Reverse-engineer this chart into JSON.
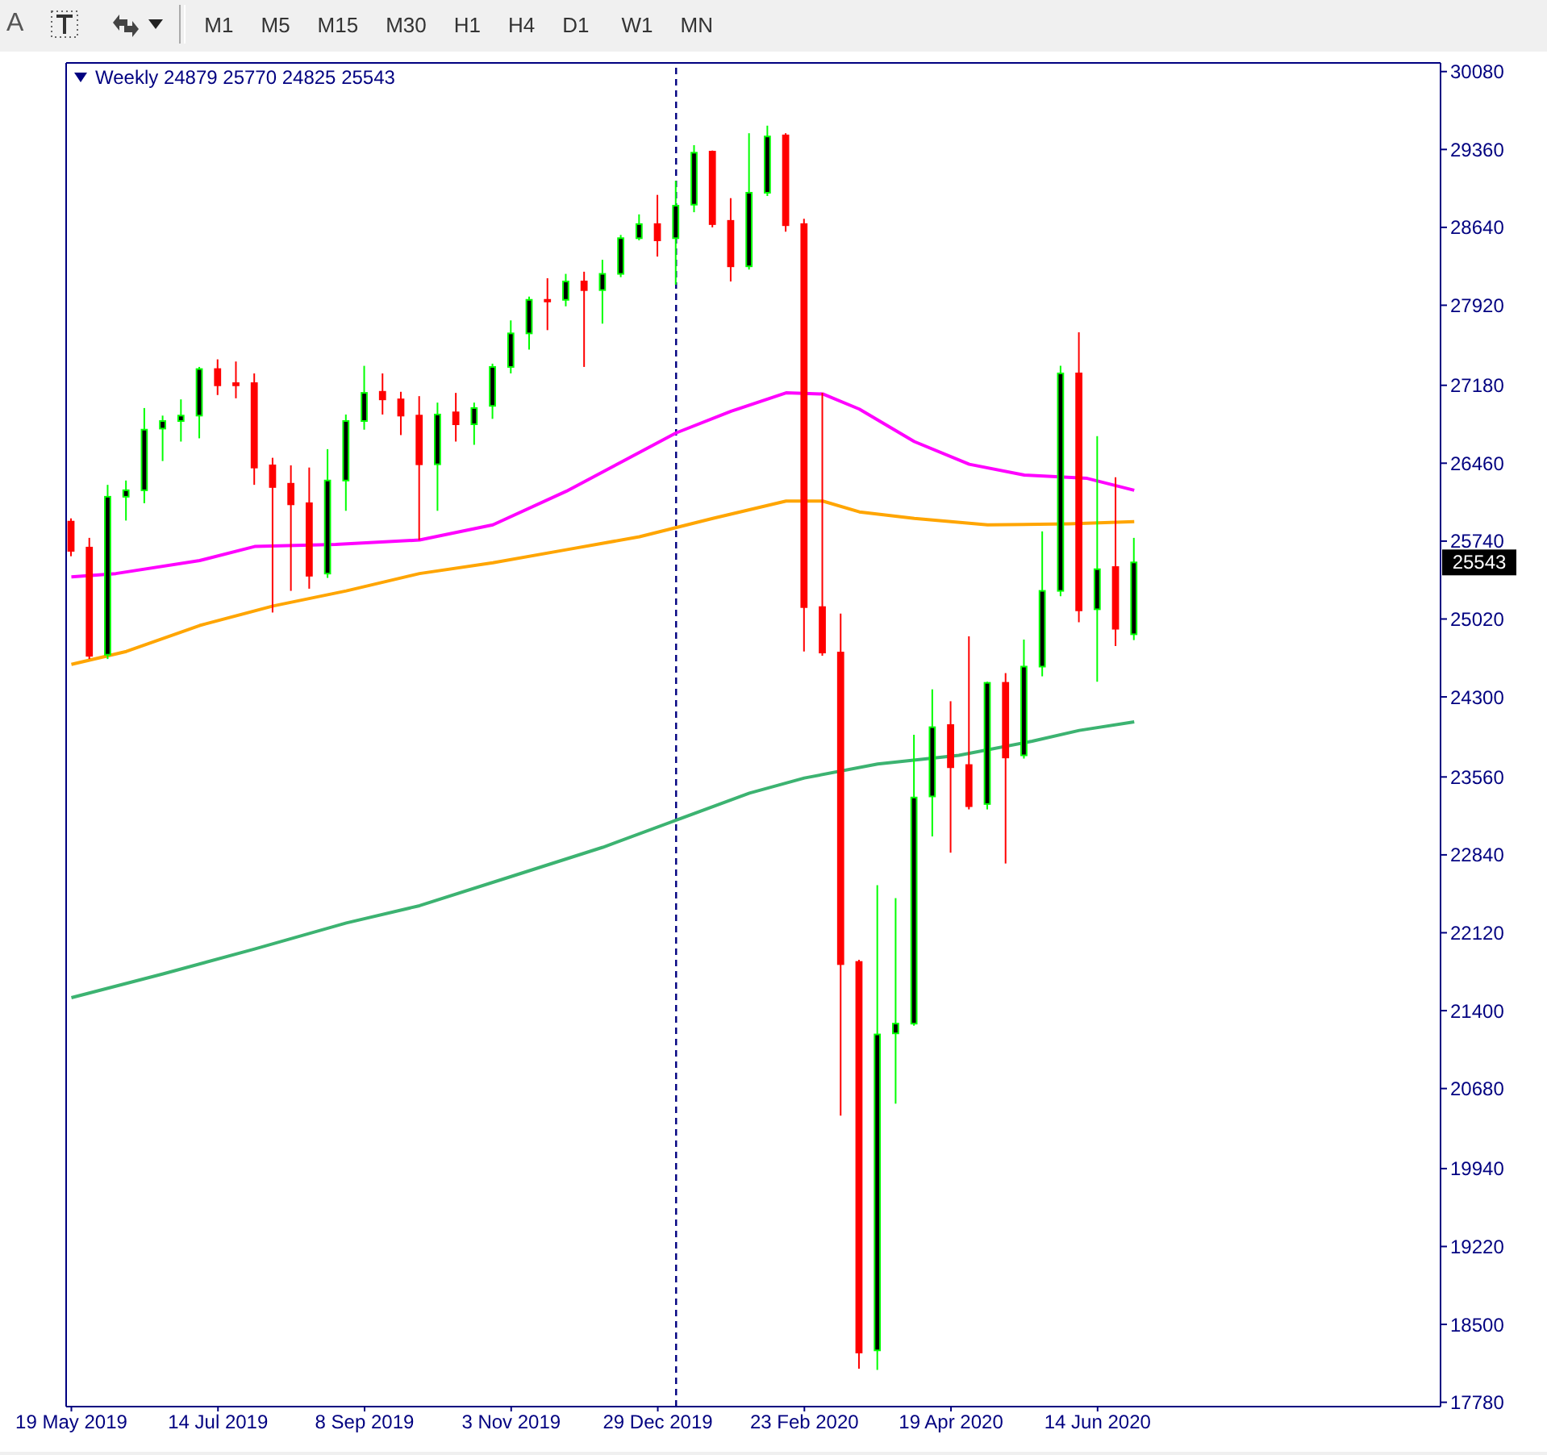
{
  "chart_data": {
    "type": "candlestick",
    "title": "Weekly  24879 25770 24825 25543",
    "annotations": [
      "A",
      "M1",
      "M5",
      "M15",
      "M30",
      "H1",
      "H4",
      "D1",
      "W1",
      "MN",
      "25543"
    ],
    "x": [
      "2019-05-19",
      "2019-05-26",
      "2019-06-02",
      "2019-06-09",
      "2019-06-16",
      "2019-06-23",
      "2019-06-30",
      "2019-07-07",
      "2019-07-14",
      "2019-07-21",
      "2019-07-28",
      "2019-08-04",
      "2019-08-11",
      "2019-08-18",
      "2019-08-25",
      "2019-09-01",
      "2019-09-08",
      "2019-09-15",
      "2019-09-22",
      "2019-09-29",
      "2019-10-06",
      "2019-10-13",
      "2019-10-20",
      "2019-10-27",
      "2019-11-03",
      "2019-11-10",
      "2019-11-17",
      "2019-11-24",
      "2019-12-01",
      "2019-12-08",
      "2019-12-15",
      "2019-12-22",
      "2019-12-29",
      "2020-01-05",
      "2020-01-12",
      "2020-01-19",
      "2020-01-26",
      "2020-02-02",
      "2020-02-09",
      "2020-02-16",
      "2020-02-23",
      "2020-03-01",
      "2020-03-08",
      "2020-03-15",
      "2020-03-22",
      "2020-03-29",
      "2020-04-05",
      "2020-04-12",
      "2020-04-19",
      "2020-04-26",
      "2020-05-03",
      "2020-05-10",
      "2020-05-17",
      "2020-05-24",
      "2020-05-31",
      "2020-06-07",
      "2020-06-14",
      "2020-06-21",
      "2020-06-28"
    ],
    "ohlc": [
      [
        25920,
        25950,
        25600,
        25650
      ],
      [
        25680,
        25770,
        24650,
        24680
      ],
      [
        24690,
        26260,
        24650,
        26150
      ],
      [
        26150,
        26300,
        25930,
        26210
      ],
      [
        26210,
        26970,
        26090,
        26770
      ],
      [
        26780,
        26900,
        26480,
        26850
      ],
      [
        26850,
        27050,
        26660,
        26900
      ],
      [
        26900,
        27350,
        26690,
        27330
      ],
      [
        27330,
        27420,
        27090,
        27180
      ],
      [
        27200,
        27400,
        27060,
        27180
      ],
      [
        27200,
        27290,
        26260,
        26420
      ],
      [
        26440,
        26510,
        25080,
        26240
      ],
      [
        26270,
        26440,
        25280,
        26080
      ],
      [
        26090,
        26420,
        25300,
        25420
      ],
      [
        25440,
        26590,
        25400,
        26300
      ],
      [
        26300,
        26910,
        26020,
        26850
      ],
      [
        26850,
        27360,
        26770,
        27110
      ],
      [
        27120,
        27290,
        26910,
        27050
      ],
      [
        27050,
        27120,
        26720,
        26900
      ],
      [
        26900,
        27080,
        25750,
        26450
      ],
      [
        26450,
        27020,
        26020,
        26910
      ],
      [
        26930,
        27110,
        26660,
        26820
      ],
      [
        26820,
        27020,
        26630,
        26970
      ],
      [
        26990,
        27380,
        26870,
        27350
      ],
      [
        27350,
        27780,
        27290,
        27660
      ],
      [
        27660,
        28000,
        27510,
        27970
      ],
      [
        27970,
        28170,
        27690,
        27960
      ],
      [
        27970,
        28210,
        27910,
        28140
      ],
      [
        28140,
        28230,
        27350,
        28060
      ],
      [
        28060,
        28340,
        27750,
        28210
      ],
      [
        28210,
        28570,
        28180,
        28540
      ],
      [
        28540,
        28760,
        28520,
        28670
      ],
      [
        28670,
        28940,
        28370,
        28520
      ],
      [
        28540,
        29070,
        28110,
        28840
      ],
      [
        28850,
        29400,
        28780,
        29330
      ],
      [
        29340,
        29350,
        28640,
        28670
      ],
      [
        28700,
        28910,
        28140,
        28280
      ],
      [
        28280,
        29510,
        28250,
        28960
      ],
      [
        28960,
        29580,
        28930,
        29480
      ],
      [
        29490,
        29510,
        28600,
        28660
      ],
      [
        28670,
        28720,
        24720,
        25130
      ],
      [
        25130,
        27110,
        24680,
        24710
      ],
      [
        24710,
        25070,
        20430,
        21830
      ],
      [
        21850,
        21870,
        18090,
        18240
      ],
      [
        18260,
        22560,
        18080,
        21180
      ],
      [
        21190,
        22440,
        20540,
        21280
      ],
      [
        21280,
        23950,
        21260,
        23370
      ],
      [
        23380,
        24370,
        23010,
        24020
      ],
      [
        24040,
        24260,
        22860,
        23650
      ],
      [
        23670,
        24860,
        23260,
        23290
      ],
      [
        23310,
        24440,
        23260,
        24430
      ],
      [
        24430,
        24520,
        22760,
        23740
      ],
      [
        23760,
        24830,
        23730,
        24580
      ],
      [
        24580,
        25830,
        24490,
        25280
      ],
      [
        25280,
        27360,
        25230,
        27290
      ],
      [
        27290,
        27670,
        24990,
        25100
      ],
      [
        25110,
        26710,
        24440,
        25480
      ],
      [
        25500,
        26330,
        24770,
        24930
      ],
      [
        24879,
        25770,
        24825,
        25543
      ]
    ],
    "colors": [
      "#ff0000",
      "#ff0000",
      "#00ff00",
      "#00ff00",
      "#00ff00",
      "#00ff00",
      "#00ff00",
      "#00ff00",
      "#ff0000",
      "#ff0000",
      "#ff0000",
      "#ff0000",
      "#ff0000",
      "#ff0000",
      "#00ff00",
      "#00ff00",
      "#00ff00",
      "#ff0000",
      "#ff0000",
      "#ff0000",
      "#00ff00",
      "#ff0000",
      "#00ff00",
      "#00ff00",
      "#00ff00",
      "#00ff00",
      "#ff0000",
      "#00ff00",
      "#ff0000",
      "#00ff00",
      "#00ff00",
      "#00ff00",
      "#ff0000",
      "#00ff00",
      "#00ff00",
      "#ff0000",
      "#ff0000",
      "#00ff00",
      "#00ff00",
      "#ff0000",
      "#ff0000",
      "#ff0000",
      "#ff0000",
      "#ff0000",
      "#00ff00",
      "#00ff00",
      "#00ff00",
      "#00ff00",
      "#ff0000",
      "#ff0000",
      "#00ff00",
      "#ff0000",
      "#00ff00",
      "#00ff00",
      "#00ff00",
      "#ff0000",
      "#00ff00",
      "#ff0000",
      "#00ff00"
    ],
    "series": [
      {
        "type": "line",
        "color": "#ff00ff",
        "x": [
          "2019-05-19",
          "2019-06-05",
          "2019-07-07",
          "2019-07-28",
          "2019-08-28",
          "2019-09-29",
          "2019-10-27",
          "2019-11-24",
          "2019-12-15",
          "2020-01-05",
          "2020-01-26",
          "2020-02-16",
          "2020-03-01",
          "2020-03-15",
          "2020-04-05",
          "2020-04-26",
          "2020-05-17",
          "2020-06-10",
          "2020-06-28"
        ],
        "values": [
          25410,
          25440,
          25560,
          25690,
          25710,
          25750,
          25890,
          26200,
          26470,
          26740,
          26940,
          27110,
          27100,
          26960,
          26660,
          26450,
          26350,
          26320,
          26210
        ]
      },
      {
        "type": "line",
        "color": "#ffa500",
        "x": [
          "2019-05-19",
          "2019-06-09",
          "2019-07-07",
          "2019-08-04",
          "2019-09-01",
          "2019-09-29",
          "2019-10-27",
          "2019-11-24",
          "2019-12-22",
          "2020-01-19",
          "2020-02-16",
          "2020-03-01",
          "2020-03-15",
          "2020-04-05",
          "2020-05-03",
          "2020-06-03",
          "2020-06-28"
        ],
        "values": [
          24600,
          24720,
          24960,
          25140,
          25280,
          25440,
          25540,
          25660,
          25780,
          25950,
          26110,
          26110,
          26010,
          25950,
          25890,
          25900,
          25920
        ]
      },
      {
        "type": "line",
        "color": "#3cb371",
        "x": [
          "2019-05-19",
          "2019-06-23",
          "2019-07-28",
          "2019-09-01",
          "2019-09-29",
          "2019-11-03",
          "2019-12-08",
          "2020-01-05",
          "2020-02-02",
          "2020-02-23",
          "2020-03-22",
          "2020-04-22",
          "2020-05-20",
          "2020-06-07",
          "2020-06-28"
        ],
        "values": [
          21520,
          21740,
          21970,
          22210,
          22370,
          22640,
          22910,
          23160,
          23410,
          23550,
          23680,
          23760,
          23890,
          23990,
          24070
        ]
      }
    ],
    "marker": "none",
    "line_style": "solid",
    "legend": false,
    "ref_lines": [
      {
        "axis": "x",
        "value": "2020-01-05",
        "color": "#000080",
        "line_style": "dashed"
      }
    ],
    "xlim": [
      "2019-05-17",
      "2020-10-23"
    ],
    "xticks": [
      {
        "value": "2019-05-19",
        "label": "19 May 2019"
      },
      {
        "value": "2019-07-14",
        "label": "14 Jul 2019"
      },
      {
        "value": "2019-09-08",
        "label": "8 Sep 2019"
      },
      {
        "value": "2019-11-03",
        "label": "3 Nov 2019"
      },
      {
        "value": "2019-12-29",
        "label": "29 Dec 2019"
      },
      {
        "value": "2020-02-23",
        "label": "23 Feb 2020"
      },
      {
        "value": "2020-04-19",
        "label": "19 Apr 2020"
      },
      {
        "value": "2020-06-14",
        "label": "14 Jun 2020"
      }
    ],
    "ylim": [
      17740,
      30160
    ],
    "yticks": [
      30080,
      29360,
      28640,
      27920,
      27180,
      26460,
      25740,
      25020,
      24300,
      23560,
      22840,
      22120,
      21400,
      20680,
      19940,
      19220,
      18500,
      17780
    ]
  }
}
